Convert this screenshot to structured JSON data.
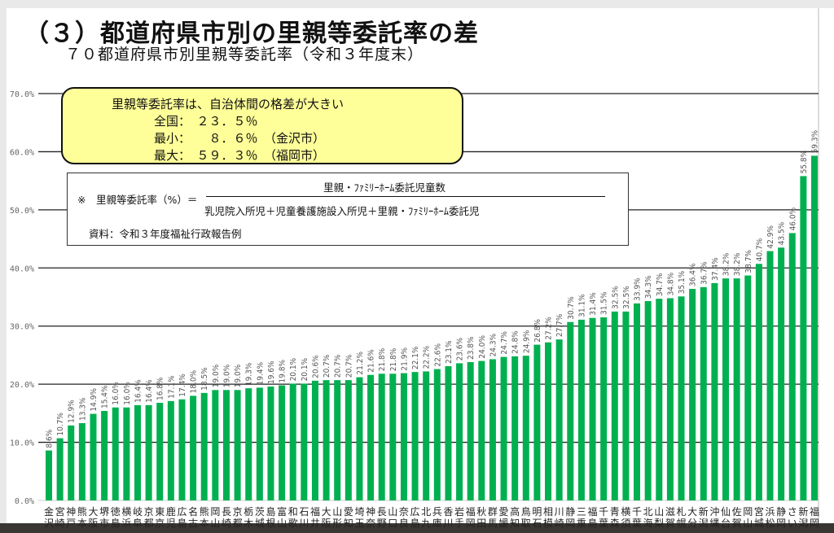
{
  "title": "（３）都道府県市別の里親等委託率の差",
  "subtitle": "７０都道府県市別里親等委託率（令和３年度末）",
  "note": {
    "heading": "里親等委託率は、自治体間の格差が大きい",
    "national": "全国：　２３．５％",
    "min": "最小：　　８．６％　（金沢市）",
    "max": "最大：　５９．３％　（福岡市）"
  },
  "formula": {
    "lhs": "※　里親等委託率（%）＝",
    "numerator": "里親・ﾌｧﾐﾘｰﾎｰﾑ委託児童数",
    "denominator": "乳児院入所児＋児童養護施設入所児＋里親・ﾌｧﾐﾘｰﾎｰﾑ委託児",
    "source": "資料：令和３年度福祉行政報告例"
  },
  "chart_data": {
    "type": "bar",
    "title": "７０都道府県市別里親等委託率（令和３年度末）",
    "ylabel": "",
    "xlabel": "",
    "ylim": [
      0,
      70
    ],
    "yticks": [
      "0.0%",
      "10.0%",
      "20.0%",
      "30.0%",
      "40.0%",
      "50.0%",
      "60.0%",
      "70.0%"
    ],
    "grid": true,
    "bar_color": "#00b050",
    "categories": [
      "金沢",
      "宮崎",
      "神戸",
      "熊本",
      "大阪",
      "堺市",
      "徳島",
      "横浜",
      "岐阜",
      "京都",
      "東京",
      "鹿児",
      "広島",
      "名古",
      "熊本",
      "岡山",
      "長崎",
      "京都",
      "栃木",
      "茨城",
      "島根",
      "富山",
      "和歌",
      "石川",
      "福井",
      "大阪",
      "山形",
      "愛知",
      "埼玉",
      "神奈",
      "長野",
      "山口",
      "奈良",
      "広島",
      "北九",
      "兵庫",
      "香川",
      "岩手",
      "福岡",
      "秋田",
      "群馬",
      "愛媛",
      "高知",
      "鳥取",
      "明石",
      "相模",
      "川崎",
      "静岡",
      "三重",
      "福島",
      "千葉",
      "青森",
      "横須",
      "千葉",
      "北海",
      "山梨",
      "滋賀",
      "札幌",
      "大分",
      "新潟",
      "沖縄",
      "仙台",
      "佐賀",
      "岡山",
      "宮城",
      "浜松",
      "静岡",
      "さい",
      "新潟",
      "福岡"
    ],
    "values": [
      8.6,
      10.7,
      12.9,
      13.3,
      14.9,
      15.4,
      16.0,
      16.0,
      16.4,
      16.4,
      16.8,
      17.1,
      17.4,
      18.0,
      18.5,
      19.0,
      19.0,
      19.0,
      19.3,
      19.4,
      19.6,
      19.8,
      20.1,
      20.1,
      20.6,
      20.7,
      20.7,
      20.7,
      21.2,
      21.6,
      21.8,
      21.8,
      21.9,
      22.1,
      22.2,
      22.6,
      23.1,
      23.6,
      23.8,
      24.0,
      24.3,
      24.7,
      24.8,
      24.9,
      26.8,
      27.2,
      27.7,
      30.7,
      31.1,
      31.4,
      31.5,
      32.5,
      32.5,
      33.9,
      34.3,
      34.7,
      34.8,
      35.1,
      36.4,
      36.7,
      37.4,
      38.2,
      38.2,
      38.7,
      40.7,
      42.9,
      43.5,
      46.0,
      55.8,
      59.3
    ],
    "value_labels": [
      "8.6%",
      "10.7%",
      "12.9%",
      "13.3%",
      "14.9%",
      "15.4%",
      "16.0%",
      "16.0%",
      "16.4%",
      "16.4%",
      "16.8%",
      "17.1%",
      "17.4%",
      "18.0%",
      "18.5%",
      "19.0%",
      "19.0%",
      "19.0%",
      "19.3%",
      "19.4%",
      "19.6%",
      "19.8%",
      "20.1%",
      "20.1%",
      "20.6%",
      "20.7%",
      "20.7%",
      "20.7%",
      "21.2%",
      "21.6%",
      "21.8%",
      "21.8%",
      "21.9%",
      "22.1%",
      "22.2%",
      "22.6%",
      "23.1%",
      "23.6%",
      "23.8%",
      "24.0%",
      "24.3%",
      "24.7%",
      "24.8%",
      "24.9%",
      "26.8%",
      "27.2%",
      "27.7%",
      "30.7%",
      "31.1%",
      "31.4%",
      "31.5%",
      "32.5%",
      "32.5%",
      "33.9%",
      "34.3%",
      "34.7%",
      "34.8%",
      "35.1%",
      "36.4%",
      "36.7%",
      "37.4%",
      "38.2%",
      "38.2%",
      "38.7%",
      "40.7%",
      "42.9%",
      "43.5%",
      "46.0%",
      "55.8%",
      "59.3%"
    ]
  }
}
